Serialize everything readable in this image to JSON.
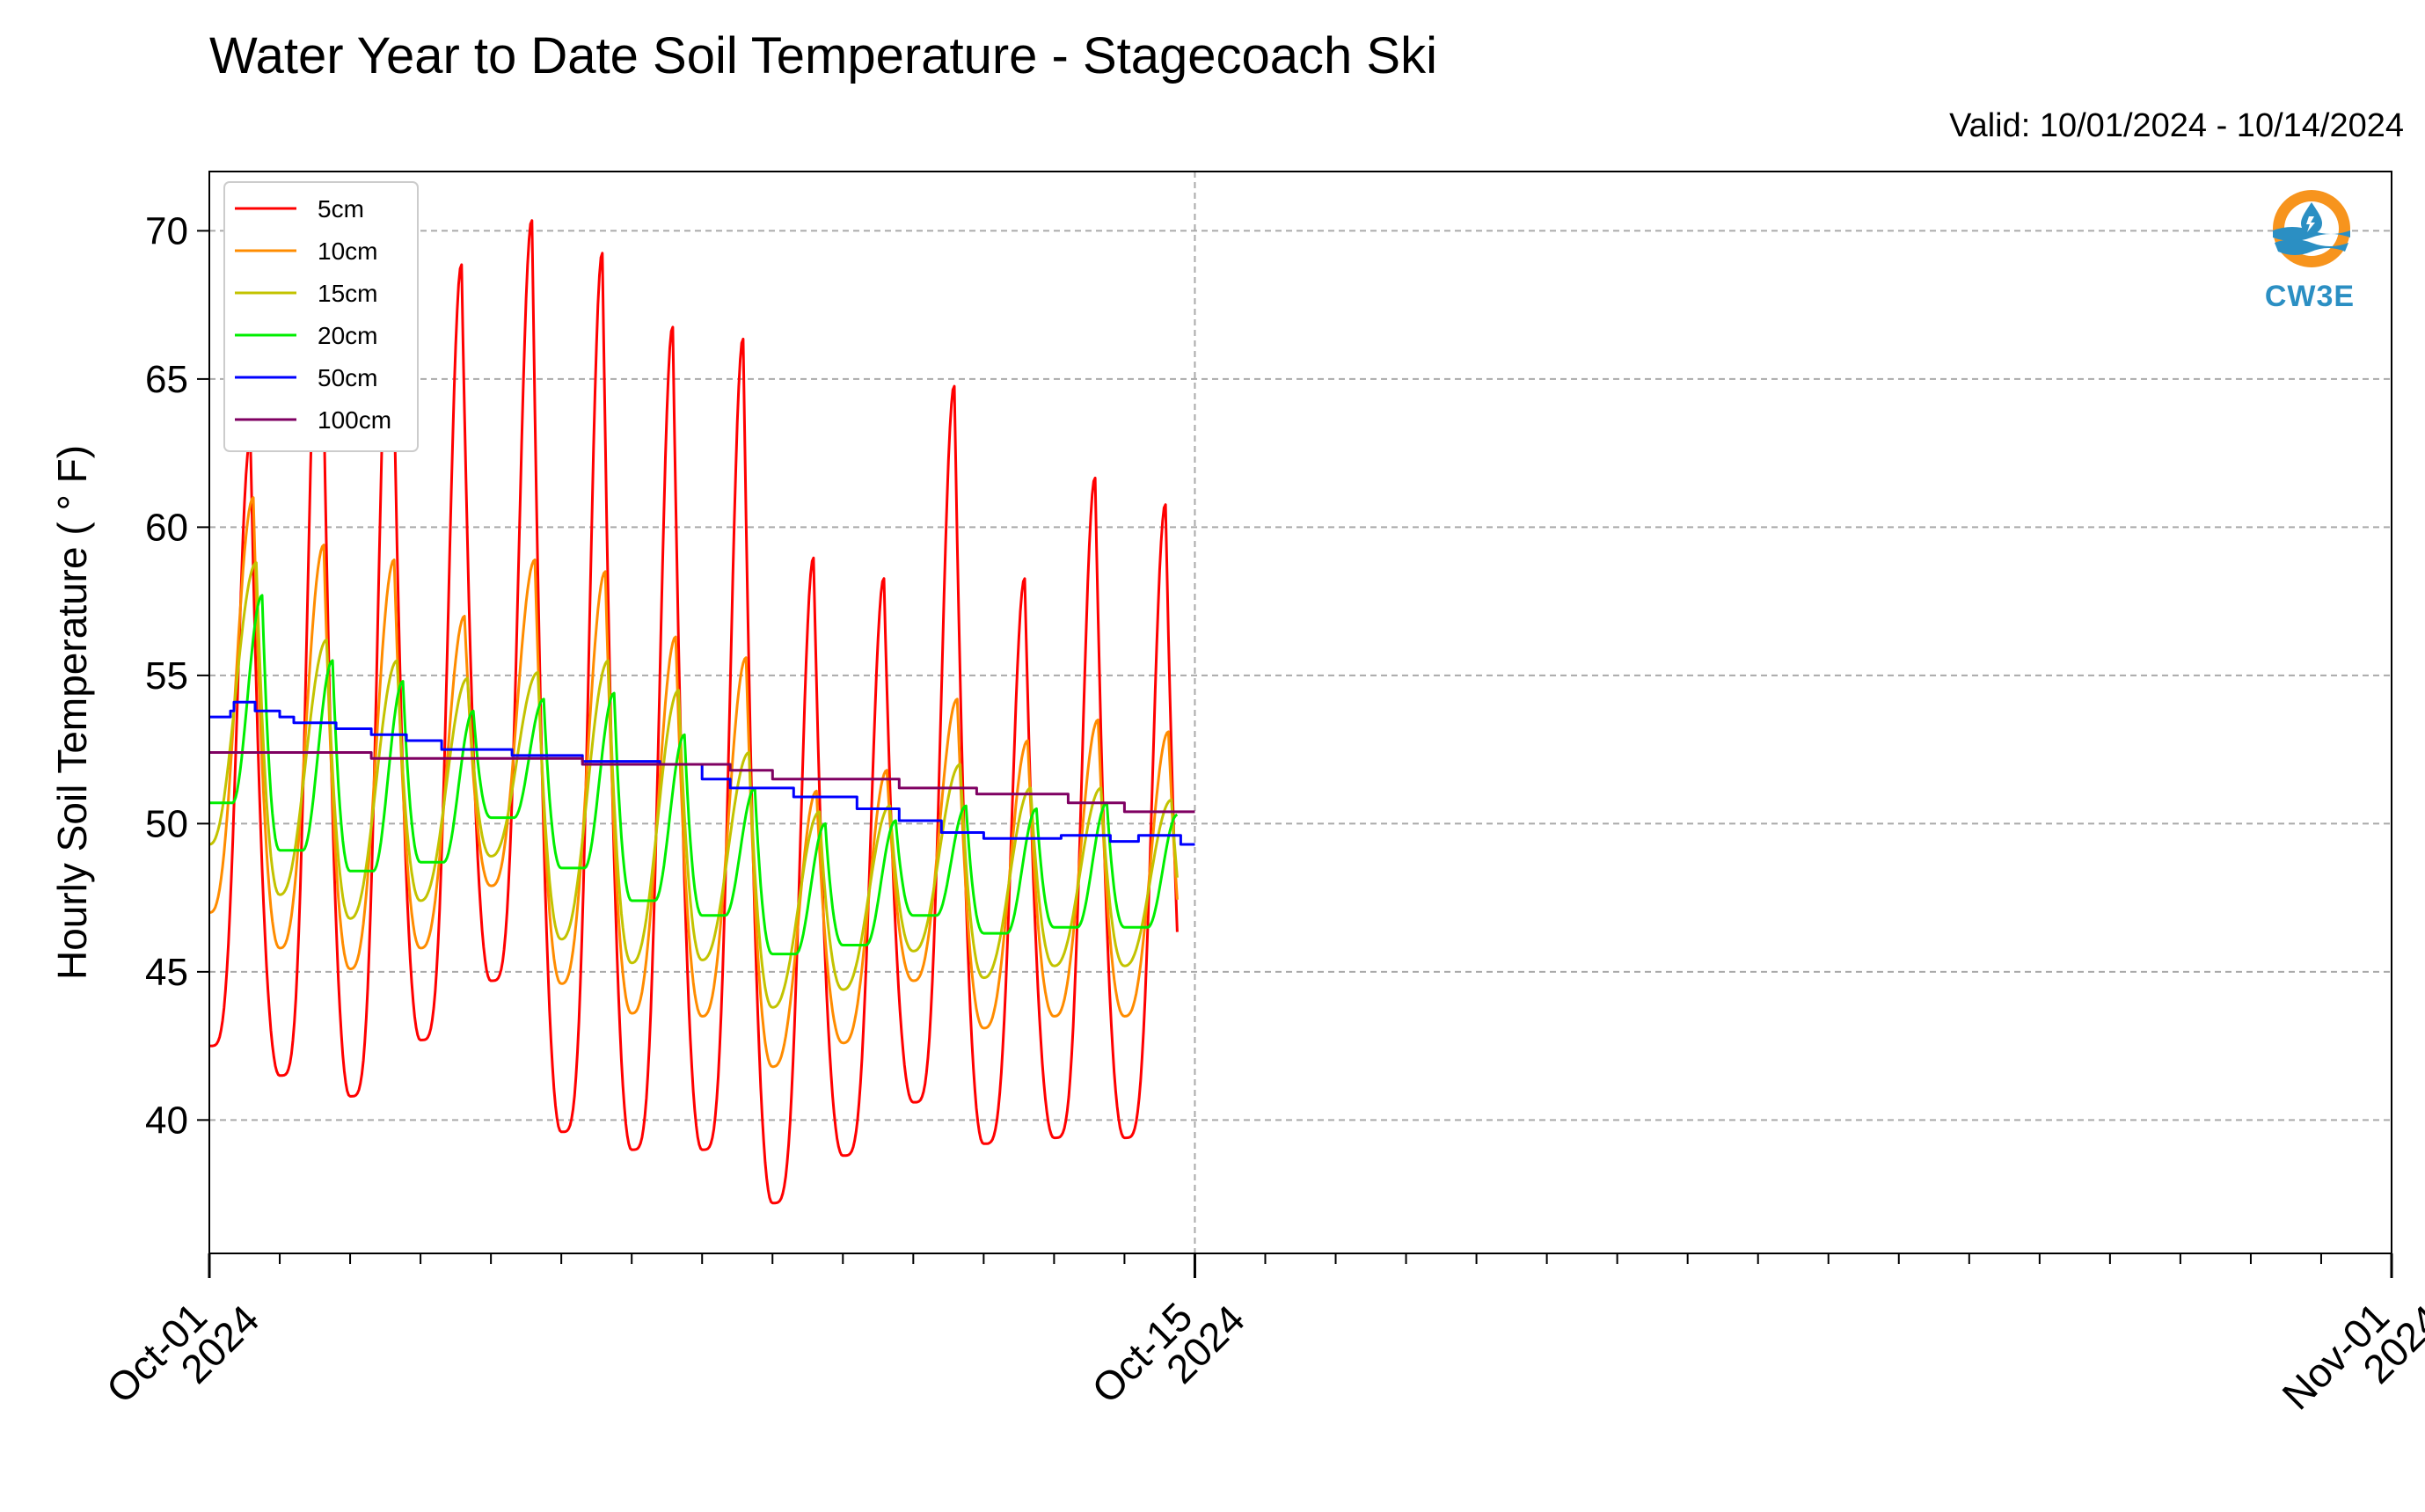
{
  "title": "Water Year to Date Soil Temperature - Stagecoach Ski",
  "valid": "Valid: 10/01/2024 - 10/14/2024",
  "logo_text": "CW3E",
  "chart_data": {
    "type": "line",
    "title": "Water Year to Date Soil Temperature - Stagecoach Ski",
    "ylabel": "Hourly Soil Temperature ( ° F)",
    "xlabel": "",
    "x_unit": "days since 2024-10-01",
    "xlim": [
      0,
      31
    ],
    "ylim": [
      35.5,
      72
    ],
    "yticks": [
      40,
      45,
      50,
      55,
      60,
      65,
      70
    ],
    "xticks": [
      {
        "pos": 0,
        "line1": "Oct-01",
        "line2": "2024"
      },
      {
        "pos": 14,
        "line1": "Oct-15",
        "line2": "2024"
      },
      {
        "pos": 31,
        "line1": "Nov-01",
        "line2": "2024"
      }
    ],
    "grid": true,
    "legend_position": "top-left",
    "series": [
      {
        "name": "5cm",
        "color": "#ff0000",
        "base": 42.5,
        "amp": 27.0,
        "pk": 0.583,
        "sh": 2.2,
        "lo": 0,
        "min": [
          42.5,
          41.5,
          40.8,
          42.7,
          44.7,
          39.6,
          39.0,
          39.0,
          37.2,
          38.8,
          40.6,
          39.2,
          39.4,
          39.4,
          39.4
        ],
        "max": [
          63.0,
          70.4,
          70.0,
          68.9,
          70.4,
          69.3,
          66.8,
          66.4,
          59.0,
          58.3,
          64.8,
          58.3,
          61.7,
          60.8,
          60.8
        ]
      },
      {
        "name": "10cm",
        "color": "#ff8c00",
        "base": 47.0,
        "amp": 9.0,
        "pk": 0.625,
        "sh": 1.4,
        "lo": 0,
        "min": [
          47.0,
          45.8,
          45.1,
          45.8,
          47.9,
          44.6,
          43.6,
          43.5,
          41.8,
          42.6,
          44.7,
          43.1,
          43.5,
          43.5,
          43.5
        ],
        "max": [
          61.0,
          59.4,
          58.9,
          57.0,
          58.9,
          58.5,
          56.3,
          55.6,
          51.1,
          51.8,
          54.2,
          52.8,
          53.5,
          53.1,
          53.1
        ]
      },
      {
        "name": "15cm",
        "color": "#c3c300",
        "base": 49.0,
        "amp": 6.5,
        "pk": 0.667,
        "sh": 1.2,
        "lo": 0,
        "min": [
          49.3,
          47.6,
          46.8,
          47.4,
          48.9,
          46.1,
          45.3,
          45.4,
          43.8,
          44.4,
          45.7,
          44.8,
          45.2,
          45.2,
          45.2
        ],
        "max": [
          58.8,
          56.2,
          55.5,
          54.9,
          55.1,
          55.5,
          54.5,
          52.4,
          50.4,
          50.6,
          52.0,
          51.2,
          51.2,
          50.8,
          50.8
        ]
      },
      {
        "name": "20cm",
        "color": "#00ee00",
        "base": 51.0,
        "amp": 4.2,
        "pk": 0.75,
        "sh": 1.0,
        "lo": 0.33,
        "min": [
          50.7,
          49.1,
          48.4,
          48.7,
          50.2,
          48.5,
          47.4,
          46.9,
          45.6,
          45.9,
          46.9,
          46.3,
          46.5,
          46.5,
          46.5
        ],
        "max": [
          57.7,
          55.5,
          54.8,
          53.8,
          54.2,
          54.4,
          53.0,
          51.2,
          50.0,
          50.1,
          50.6,
          50.5,
          50.7,
          50.3,
          50.3
        ]
      },
      {
        "name": "50cm",
        "color": "#0000ff",
        "step": [
          [
            0,
            53.6
          ],
          [
            0.3,
            53.8
          ],
          [
            0.35,
            54.1
          ],
          [
            0.65,
            53.8
          ],
          [
            1.0,
            53.6
          ],
          [
            1.2,
            53.4
          ],
          [
            1.8,
            53.2
          ],
          [
            2.3,
            53.0
          ],
          [
            2.8,
            52.8
          ],
          [
            3.3,
            52.5
          ],
          [
            4.3,
            52.3
          ],
          [
            5.3,
            52.1
          ],
          [
            6.4,
            52.0
          ],
          [
            7.0,
            51.5
          ],
          [
            7.4,
            51.2
          ],
          [
            8.3,
            50.9
          ],
          [
            9.2,
            50.5
          ],
          [
            9.8,
            50.1
          ],
          [
            10.4,
            49.7
          ],
          [
            11.0,
            49.5
          ],
          [
            12.1,
            49.6
          ],
          [
            12.8,
            49.4
          ],
          [
            13.2,
            49.6
          ],
          [
            13.8,
            49.3
          ],
          [
            14,
            49.3
          ]
        ]
      },
      {
        "name": "100cm",
        "color": "#7f0062",
        "step": [
          [
            0,
            52.4
          ],
          [
            2.3,
            52.2
          ],
          [
            5.3,
            52.0
          ],
          [
            7.4,
            51.8
          ],
          [
            8.0,
            51.5
          ],
          [
            9.8,
            51.2
          ],
          [
            10.9,
            51.0
          ],
          [
            12.2,
            50.7
          ],
          [
            13.0,
            50.4
          ],
          [
            14,
            50.4
          ]
        ]
      }
    ]
  }
}
